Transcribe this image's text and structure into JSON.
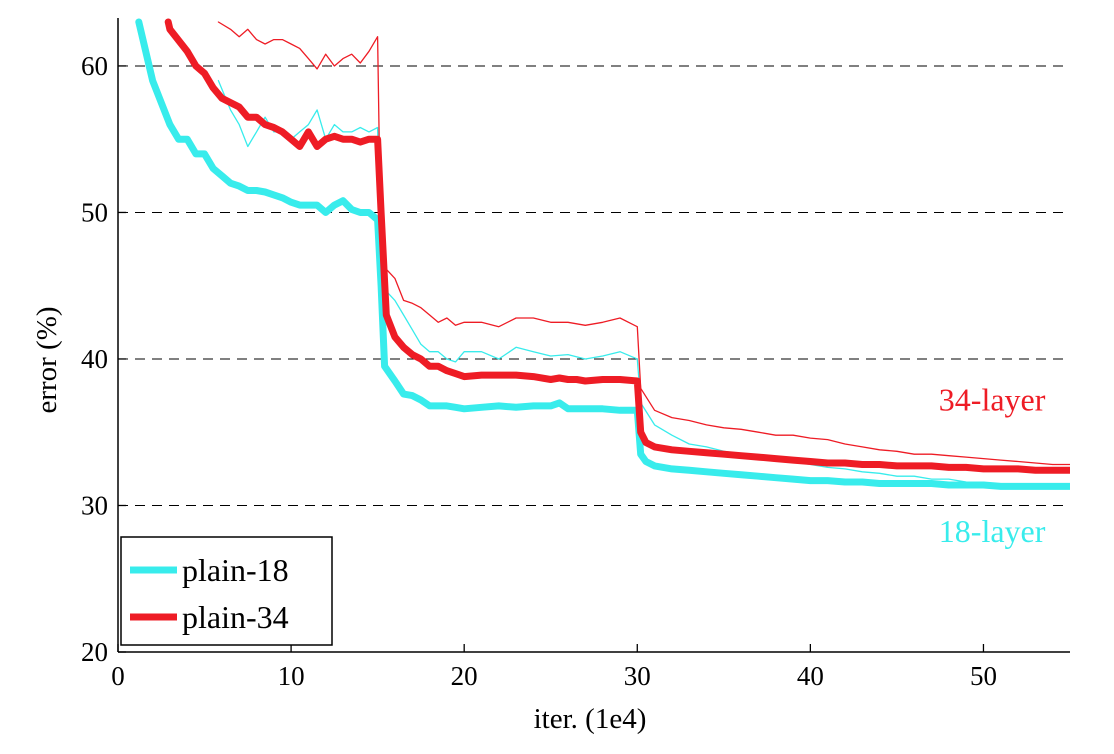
{
  "chart_data": {
    "type": "line",
    "title": "",
    "xlabel": "iter. (1e4)",
    "ylabel": "error (%)",
    "xlim": [
      0,
      55
    ],
    "ylim": [
      20,
      63
    ],
    "xticks": [
      0,
      10,
      20,
      30,
      40,
      50
    ],
    "yticks": [
      20,
      30,
      40,
      50,
      60
    ],
    "grid": "horizontal-dashed",
    "legend_position": "bottom-left",
    "legend": [
      {
        "label": "plain-18",
        "color": "#38ecec"
      },
      {
        "label": "plain-34",
        "color": "#ee1c25"
      }
    ],
    "annotations": [
      {
        "text": "34-layer",
        "color": "#ee1c25",
        "x": 50.5,
        "y": 36.5
      },
      {
        "text": "18-layer",
        "color": "#38ecec",
        "x": 50.5,
        "y": 27.5
      }
    ],
    "series": [
      {
        "name": "plain-18",
        "role": "val",
        "color": "#38ecec",
        "x": [
          1.2,
          2,
          3,
          3.5,
          4,
          4.5,
          5,
          5.5,
          6,
          6.5,
          7,
          7.5,
          8,
          8.5,
          9,
          9.5,
          10,
          10.5,
          11,
          11.5,
          12,
          12.5,
          13,
          13.5,
          14,
          14.5,
          15,
          15.2,
          15.4,
          16,
          16.5,
          17,
          17.5,
          18,
          18.5,
          19,
          19.5,
          20,
          21,
          22,
          23,
          24,
          25,
          25.5,
          26,
          26.5,
          27,
          28,
          29,
          30,
          30.2,
          30.5,
          31,
          32,
          33,
          34,
          35,
          36,
          37,
          38,
          39,
          40,
          41,
          42,
          43,
          44,
          45,
          46,
          47,
          48,
          49,
          50,
          51,
          52,
          53,
          54,
          55
        ],
        "y": [
          63,
          59,
          56,
          55,
          55,
          54,
          54,
          53,
          52.5,
          52,
          51.8,
          51.5,
          51.5,
          51.4,
          51.2,
          51,
          50.7,
          50.5,
          50.5,
          50.5,
          50,
          50.5,
          50.8,
          50.2,
          50,
          50,
          49.5,
          45,
          39.5,
          38.5,
          37.6,
          37.5,
          37.2,
          36.8,
          36.8,
          36.8,
          36.7,
          36.6,
          36.7,
          36.8,
          36.7,
          36.8,
          36.8,
          37,
          36.6,
          36.6,
          36.6,
          36.6,
          36.5,
          36.5,
          33.5,
          33,
          32.7,
          32.5,
          32.4,
          32.3,
          32.2,
          32.1,
          32,
          31.9,
          31.8,
          31.7,
          31.7,
          31.6,
          31.6,
          31.5,
          31.5,
          31.5,
          31.5,
          31.4,
          31.4,
          31.4,
          31.3,
          31.3,
          31.3,
          31.3,
          31.3
        ]
      },
      {
        "name": "plain-34",
        "role": "val",
        "color": "#ee1c25",
        "x": [
          2.9,
          3,
          4,
          4.5,
          5,
          5.5,
          6,
          6.5,
          7,
          7.5,
          8,
          8.5,
          9,
          9.5,
          10,
          10.5,
          11,
          11.5,
          12,
          12.5,
          13,
          13.5,
          14,
          14.5,
          15,
          15.2,
          15.5,
          16,
          16.5,
          17,
          17.5,
          18,
          18.5,
          19,
          19.5,
          20,
          21,
          22,
          23,
          24,
          25,
          25.5,
          26,
          26.5,
          27,
          28,
          29,
          30,
          30.2,
          30.5,
          31,
          32,
          33,
          34,
          35,
          36,
          37,
          38,
          39,
          40,
          41,
          42,
          43,
          44,
          45,
          46,
          47,
          48,
          49,
          50,
          51,
          52,
          53,
          54,
          55
        ],
        "y": [
          63,
          62.5,
          61,
          60,
          59.5,
          58.5,
          57.8,
          57.5,
          57.2,
          56.5,
          56.5,
          56,
          55.8,
          55.5,
          55,
          54.5,
          55.5,
          54.5,
          55,
          55.2,
          55,
          55,
          54.8,
          55,
          55,
          50,
          43,
          41.5,
          40.8,
          40.3,
          40,
          39.5,
          39.5,
          39.2,
          39,
          38.8,
          38.9,
          38.9,
          38.9,
          38.8,
          38.6,
          38.7,
          38.6,
          38.6,
          38.5,
          38.6,
          38.6,
          38.5,
          35,
          34.3,
          34,
          33.8,
          33.7,
          33.6,
          33.5,
          33.4,
          33.3,
          33.2,
          33.1,
          33,
          32.9,
          32.9,
          32.8,
          32.8,
          32.7,
          32.7,
          32.7,
          32.6,
          32.6,
          32.5,
          32.5,
          32.5,
          32.4,
          32.4,
          32.4
        ]
      },
      {
        "name": "plain-18",
        "role": "train",
        "color": "#38ecec",
        "x": [
          5.8,
          6.5,
          7,
          7.5,
          8,
          8.5,
          9,
          9.5,
          10,
          10.5,
          11,
          11.5,
          12,
          12.5,
          13,
          13.5,
          14,
          14.5,
          15,
          15.2,
          16,
          16.5,
          17,
          17.5,
          18,
          18.5,
          19,
          19.5,
          20,
          21,
          22,
          23,
          24,
          25,
          26,
          27,
          28,
          29,
          30,
          30.2,
          31,
          32,
          33,
          34,
          35,
          36,
          37,
          38,
          39,
          40,
          41,
          42,
          43,
          44,
          45,
          46,
          47,
          48,
          49,
          50,
          51,
          52,
          53,
          54,
          55
        ],
        "y": [
          59,
          57,
          56,
          54.5,
          55.5,
          56.5,
          55.5,
          55.5,
          55,
          55.5,
          56,
          57,
          55,
          56,
          55.5,
          55.5,
          55.8,
          55.5,
          55.8,
          45,
          44,
          43,
          42,
          41,
          40.5,
          40.5,
          40,
          39.8,
          40.5,
          40.5,
          40,
          40.8,
          40.5,
          40.2,
          40.3,
          40,
          40.2,
          40.5,
          40,
          37,
          35.5,
          34.8,
          34.2,
          34,
          33.7,
          33.5,
          33.2,
          33.2,
          33,
          32.8,
          32.6,
          32.5,
          32.3,
          32.2,
          32,
          32,
          31.8,
          31.8,
          31.6,
          31.5,
          31.4,
          31.4,
          31.3,
          31.3,
          31.2
        ]
      },
      {
        "name": "plain-34",
        "role": "train",
        "color": "#ee1c25",
        "x": [
          5.8,
          6.5,
          7,
          7.5,
          8,
          8.5,
          9,
          9.5,
          10,
          10.5,
          11,
          11.5,
          12,
          12.5,
          13,
          13.5,
          14,
          14.5,
          15,
          15.2,
          16,
          16.5,
          17,
          17.5,
          18,
          18.5,
          19,
          19.5,
          20,
          21,
          22,
          23,
          24,
          25,
          26,
          27,
          28,
          29,
          30,
          30.2,
          31,
          32,
          33,
          34,
          35,
          36,
          37,
          38,
          39,
          40,
          41,
          42,
          43,
          44,
          45,
          46,
          47,
          48,
          49,
          50,
          51,
          52,
          53,
          54,
          55
        ],
        "y": [
          63,
          62.5,
          62,
          62.5,
          61.8,
          61.5,
          61.8,
          61.8,
          61.5,
          61.2,
          60.5,
          59.8,
          60.8,
          60,
          60.5,
          60.8,
          60.2,
          61,
          62,
          46.5,
          45.5,
          44,
          43.8,
          43.5,
          43,
          42.5,
          42.8,
          42.3,
          42.5,
          42.5,
          42.2,
          42.8,
          42.8,
          42.5,
          42.5,
          42.3,
          42.5,
          42.8,
          42.2,
          38,
          36.5,
          36,
          35.8,
          35.5,
          35.3,
          35.2,
          35,
          34.8,
          34.8,
          34.6,
          34.5,
          34.2,
          34,
          33.8,
          33.7,
          33.5,
          33.5,
          33.4,
          33.3,
          33.2,
          33.1,
          33,
          32.9,
          32.8,
          32.8
        ]
      }
    ]
  }
}
